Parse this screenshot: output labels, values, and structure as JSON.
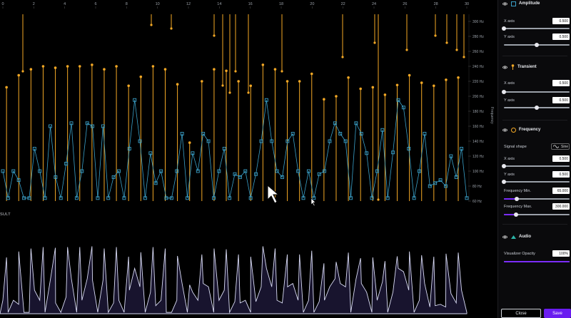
{
  "viz": {
    "top_ticks": [
      "0",
      "2",
      "4",
      "6",
      "8",
      "10",
      "12",
      "14",
      "16",
      "18",
      "20",
      "22",
      "24",
      "26",
      "28",
      "30"
    ],
    "right_ticks": [
      "300 Hz",
      "280 Hz",
      "260 Hz",
      "240 Hz",
      "220 Hz",
      "200 Hz",
      "180 Hz",
      "160 Hz",
      "140 Hz",
      "120 Hz",
      "100 Hz",
      "80 Hz",
      "60 Hz"
    ],
    "y_axis_title": "Frequency",
    "result_label": "SULT",
    "colors": {
      "amplitude": "#3aa0c8",
      "transient": "#f3a825",
      "result_fill": "#18142e",
      "result_line": "#d9dbf5"
    },
    "amplitude_hz": [
      100,
      64,
      100,
      88,
      64,
      64,
      130,
      100,
      64,
      160,
      92,
      64,
      110,
      164,
      64,
      100,
      164,
      160,
      64,
      160,
      64,
      92,
      100,
      64,
      130,
      195,
      140,
      64,
      124,
      84,
      100,
      64,
      64,
      100,
      150,
      64,
      124,
      100,
      150,
      140,
      64,
      100,
      130,
      64,
      96,
      92,
      100,
      64,
      96,
      140,
      195,
      140,
      100,
      92,
      140,
      150,
      100,
      64,
      100,
      64,
      96,
      100,
      140,
      164,
      150,
      140,
      64,
      164,
      150,
      124,
      64,
      100,
      155,
      64,
      125,
      195,
      185,
      130,
      64,
      100,
      150,
      80,
      84,
      88,
      80,
      120,
      92,
      130,
      64
    ],
    "transient_tops_hz": [
      212,
      228,
      236,
      240,
      238,
      240,
      240,
      242,
      236,
      240,
      214,
      226,
      240,
      236,
      216,
      138,
      220,
      236,
      234,
      220,
      214,
      242,
      236,
      220,
      220,
      230,
      196,
      200,
      225,
      210,
      212,
      202,
      215,
      228,
      218,
      214,
      222,
      225
    ]
  },
  "panel": {
    "amplitude": {
      "title": "Amplitude",
      "x_label": "X axis",
      "x_value": "0.500",
      "y_label": "Y axis",
      "y_value": "0.500",
      "x_level": 0,
      "y_level": 0.5
    },
    "transient": {
      "title": "Transient",
      "x_label": "X axis",
      "x_value": "0.500",
      "y_label": "Y axis",
      "y_value": "0.500",
      "x_level": 0,
      "y_level": 0.5
    },
    "frequency": {
      "title": "Frequency",
      "signal_shape_label": "Signal shape",
      "signal_shape_value": "Sine",
      "x_label": "X axis",
      "x_value": "0.500",
      "y_label": "Y axis",
      "y_value": "0.500",
      "min_label": "Frequency Min.",
      "min_value": "65.000",
      "max_label": "Frequency Max.",
      "max_value": "300.000",
      "x_level": 0,
      "y_level": 0,
      "min_level": 0.2,
      "max_level": 0.18
    },
    "audio": {
      "title": "Audio",
      "opacity_label": "Visualizer Opacity",
      "opacity_value": "100%",
      "opacity_level": 1
    },
    "close_label": "Close",
    "save_label": "Save",
    "accent": "#7b2cff"
  }
}
